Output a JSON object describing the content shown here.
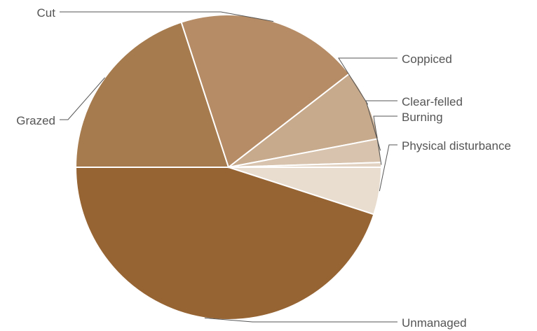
{
  "chart_data": {
    "type": "pie",
    "title": "",
    "slices": [
      {
        "label": "Physical disturbance",
        "value": 5.0,
        "color": "#e9ddd0"
      },
      {
        "label": "Unmanaged",
        "value": 45.0,
        "color": "#966332"
      },
      {
        "label": "Grazed",
        "value": 20.0,
        "color": "#a67b4d"
      },
      {
        "label": "Cut",
        "value": 19.5,
        "color": "#b58c65"
      },
      {
        "label": "Coppiced",
        "value": 7.5,
        "color": "#c7a98b"
      },
      {
        "label": "Clear-felled",
        "value": 2.5,
        "color": "#d8c4ae"
      },
      {
        "label": "Burning",
        "value": 0.5,
        "color": "#e1d2c1"
      }
    ]
  }
}
